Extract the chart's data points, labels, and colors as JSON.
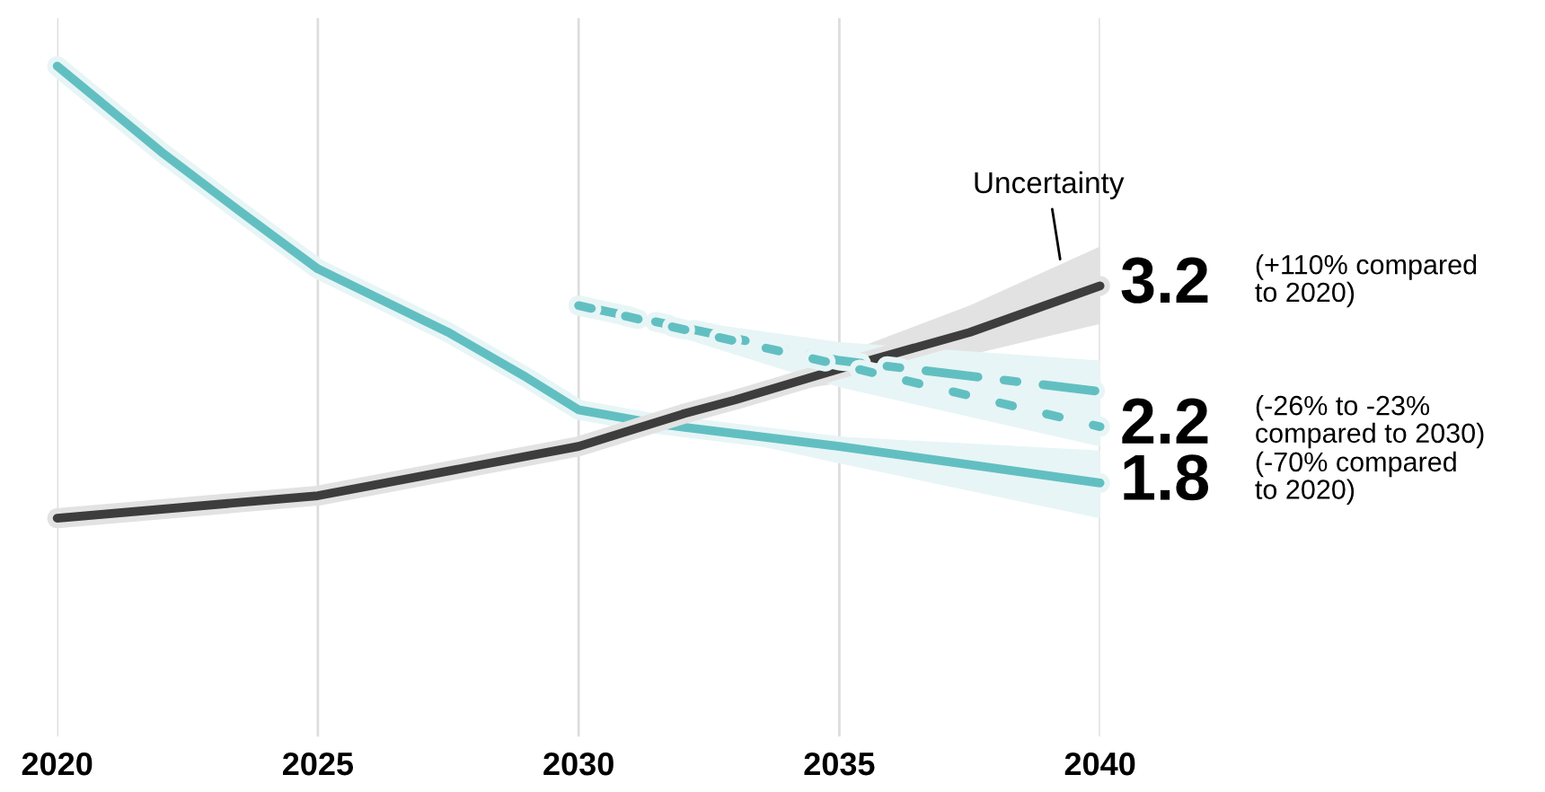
{
  "chart_data": {
    "type": "line",
    "xlim": [
      2020,
      2040
    ],
    "xticks": [
      2020,
      2025,
      2030,
      2035,
      2040
    ],
    "ylim": [
      0,
      5.1
    ],
    "grid": "x",
    "tick_labels": "x",
    "series": [
      {
        "color": "#62bfc1",
        "line_style": "solid",
        "x": [
          2020,
          2022,
          2023.5,
          2025,
          2027.5,
          2029,
          2030,
          2031.5,
          2035,
          2040
        ],
        "values": [
          4.76,
          4.15,
          3.73,
          3.32,
          2.87,
          2.55,
          2.32,
          2.22,
          2.06,
          1.8
        ],
        "lower": [
          null,
          null,
          null,
          null,
          null,
          null,
          null,
          2.22,
          1.94,
          1.55
        ],
        "upper": [
          null,
          null,
          null,
          null,
          null,
          null,
          null,
          2.22,
          2.13,
          2.03
        ],
        "value_labels": [
          null,
          null,
          null,
          null,
          null,
          null,
          null,
          null,
          null,
          "1.8"
        ]
      },
      {
        "color": "#3d3d3d",
        "line_style": "solid",
        "x": [
          2020,
          2025,
          2030,
          2032,
          2033,
          2035,
          2037.5,
          2040
        ],
        "values": [
          1.55,
          1.71,
          2.06,
          2.29,
          2.39,
          2.61,
          2.87,
          3.2
        ],
        "lower": [
          null,
          null,
          null,
          null,
          2.39,
          2.51,
          2.71,
          2.93
        ],
        "upper": [
          null,
          null,
          null,
          null,
          2.39,
          2.71,
          3.06,
          3.48
        ],
        "value_labels": [
          null,
          null,
          null,
          null,
          null,
          null,
          null,
          "3.2"
        ]
      },
      {
        "color": "#62bfc1",
        "line_style": "dashed",
        "x": [
          2030,
          2035,
          2040
        ],
        "values": [
          3.06,
          2.67,
          2.45
        ],
        "lower": [
          3.06,
          2.48,
          2.06
        ],
        "upper": [
          3.06,
          2.8,
          2.67
        ]
      },
      {
        "color": "#62bfc1",
        "line_style": "dotted",
        "x": [
          2030,
          2035,
          2040
        ],
        "values": [
          3.06,
          2.64,
          2.2
        ],
        "value_labels": [
          null,
          null,
          "2.2"
        ]
      }
    ],
    "annotations": [
      "(-70% compared\nto 2020)",
      "(+110% compared\nto 2020)",
      "(-26% to -23%\ncompared to 2030)",
      "Uncertainty"
    ]
  }
}
